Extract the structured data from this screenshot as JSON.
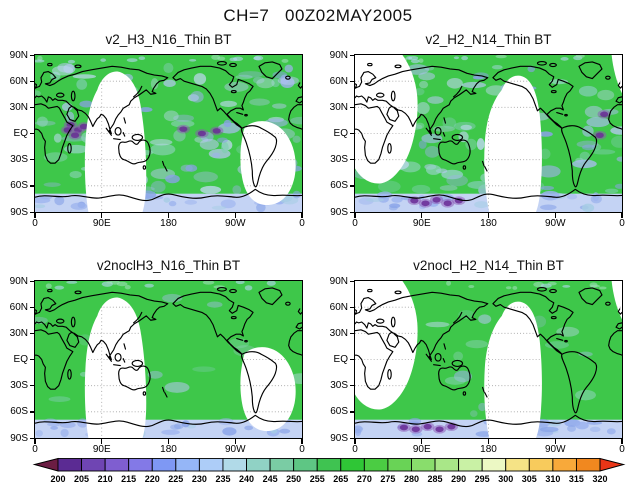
{
  "title": "CH=7   00Z02MAY2005",
  "chart_data": {
    "type": "heatmap",
    "subject": "Global brightness temperature (BT) maps, channel 7, 00Z 02 May 2005, 2x2 panel comparison",
    "projection": "equirectangular, longitude 0E to 360E, latitude 90S to 90N",
    "grid": "dotted graticule every 30 deg latitude / 90 deg longitude, visible in data-void swaths",
    "panels": [
      {
        "title": "v2_H3_N16_Thin BT",
        "satellite_swath": "n16",
        "noise": "high",
        "purple_patches": [
          [
            48,
            80
          ],
          [
            58,
            86
          ],
          [
            66,
            82
          ],
          [
            54,
            92
          ],
          [
            44,
            86
          ],
          [
            200,
            85
          ],
          [
            225,
            90
          ],
          [
            245,
            87
          ]
        ]
      },
      {
        "title": "v2_H2_N14_Thin BT",
        "satellite_swath": "n14",
        "noise": "high",
        "purple_patches": [
          [
            80,
            167
          ],
          [
            95,
            170
          ],
          [
            110,
            166
          ],
          [
            125,
            170
          ],
          [
            140,
            167
          ],
          [
            336,
            68
          ],
          [
            330,
            92
          ]
        ]
      },
      {
        "title": "v2noclH3_N16_Thin BT",
        "satellite_swath": "n16",
        "noise": "low",
        "purple_patches": []
      },
      {
        "title": "v2nocl_H2_N14_Thin BT",
        "satellite_swath": "n14",
        "noise": "low",
        "purple_patches": [
          [
            66,
            168
          ],
          [
            82,
            170
          ],
          [
            98,
            167
          ],
          [
            114,
            170
          ],
          [
            130,
            167
          ]
        ]
      }
    ],
    "yticks": [
      "90N",
      "60N",
      "30N",
      "EQ",
      "30S",
      "60S",
      "90S"
    ],
    "xticks": [
      "0",
      "90E",
      "180",
      "90W",
      "0"
    ],
    "colorbar": {
      "orientation": "horizontal",
      "labels": [
        "200",
        "205",
        "210",
        "215",
        "220",
        "225",
        "230",
        "235",
        "240",
        "245",
        "250",
        "255",
        "265",
        "270",
        "275",
        "280",
        "285",
        "290",
        "295",
        "300",
        "305",
        "310",
        "315",
        "320"
      ],
      "colors": [
        "#6b1d43",
        "#5b2b93",
        "#6f45b3",
        "#7f5ed0",
        "#8379e7",
        "#7e98f4",
        "#95b6f7",
        "#adcdf8",
        "#b1dae8",
        "#90d2c5",
        "#7acca4",
        "#5ec684",
        "#3fc351",
        "#2fc636",
        "#4bcc43",
        "#69d356",
        "#89dd6c",
        "#a9e788",
        "#c9f1a5",
        "#ecf8c4",
        "#f5e386",
        "#f8cb5c",
        "#f8a93a",
        "#f1881f",
        "#ea3517"
      ]
    },
    "field_colors": {
      "data_green": "#3ec74a",
      "antarctic_band": "#c4d3f4",
      "no_data_white": "#ffffff"
    }
  }
}
